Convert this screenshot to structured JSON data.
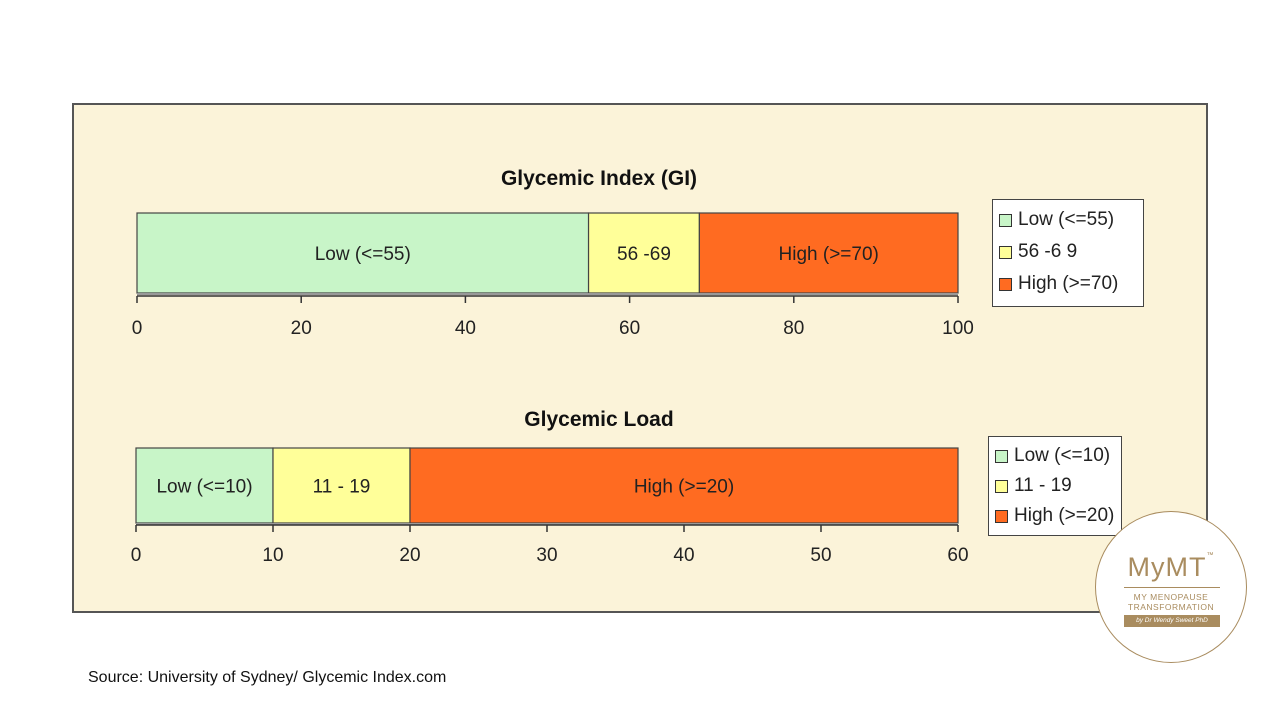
{
  "chart_data": [
    {
      "type": "bar",
      "orientation": "horizontal-stacked",
      "title": "Glycemic Index (GI)",
      "xlim": [
        0,
        100
      ],
      "xticks": [
        0,
        20,
        40,
        60,
        80,
        100
      ],
      "segments": [
        {
          "label": "Low (<=55)",
          "start": 0,
          "end": 55,
          "color": "#c8f5c8"
        },
        {
          "label": "56 -69",
          "start": 55,
          "end": 68.5,
          "color": "#ffff99"
        },
        {
          "label": "High (>=70)",
          "start": 68.5,
          "end": 100,
          "color": "#ff6b21"
        }
      ],
      "legend": {
        "position": "right",
        "items": [
          {
            "label": "Low (<=55)",
            "color": "#c8f5c8"
          },
          {
            "label": "56 -6 9",
            "color": "#ffff99"
          },
          {
            "label": "High  (>=70)",
            "color": "#ff6b21"
          }
        ]
      }
    },
    {
      "type": "bar",
      "orientation": "horizontal-stacked",
      "title": "Glycemic Load",
      "xlim": [
        0,
        60
      ],
      "xticks": [
        0,
        10,
        20,
        30,
        40,
        50,
        60
      ],
      "segments": [
        {
          "label": "Low (<=10)",
          "start": 0,
          "end": 10,
          "color": "#c8f5c8"
        },
        {
          "label": "11 - 19",
          "start": 10,
          "end": 20,
          "color": "#ffff99"
        },
        {
          "label": "High (>=20)",
          "start": 20,
          "end": 60,
          "color": "#ff6b21"
        }
      ],
      "legend": {
        "position": "right",
        "items": [
          {
            "label": "Low (<=10)",
            "color": "#c8f5c8"
          },
          {
            "label": "11 - 19",
            "color": "#ffff99"
          },
          {
            "label": "High (>=20)",
            "color": "#ff6b21"
          }
        ]
      }
    }
  ],
  "source_note": "Source: University of Sydney/ Glycemic Index.com",
  "logo": {
    "brand": "MyMT",
    "tm": "™",
    "subtitle_line1": "MY MENOPAUSE",
    "subtitle_line2": "TRANSFORMATION",
    "byline": "by Dr Wendy Sweet PhD",
    "color": "#a98c5f"
  }
}
